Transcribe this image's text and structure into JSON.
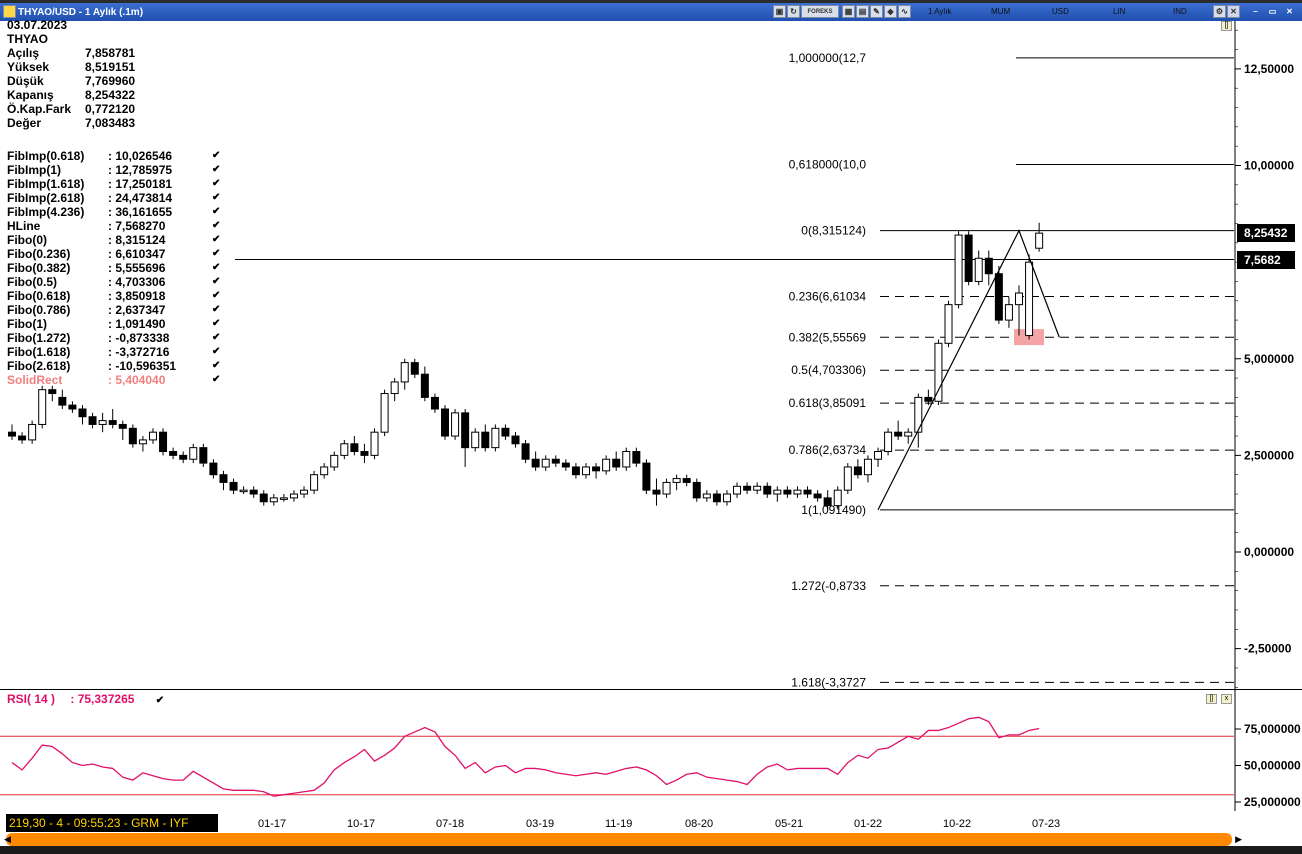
{
  "window": {
    "title": "THYAO/USD - 1 Aylık  (.1m)",
    "toolbar_tabs": [
      "1 Aylık",
      "MUM",
      "USD",
      "LIN",
      "IND"
    ],
    "forex_label": "FOREKS"
  },
  "info": {
    "date": "03.07.2023",
    "symbol": "THYAO",
    "rows": [
      {
        "label": "Açılış",
        "value": "7,858781"
      },
      {
        "label": "Yüksek",
        "value": "8,519151"
      },
      {
        "label": "Düşük",
        "value": "7,769960"
      },
      {
        "label": "Kapanış",
        "value": "8,254322"
      },
      {
        "label": "Ö.Kap.Fark",
        "value": "0,772120"
      },
      {
        "label": "Değer",
        "value": "7,083483"
      }
    ]
  },
  "legend": [
    {
      "label": "FibImp(0.618)",
      "value": ": 10,026546"
    },
    {
      "label": "FibImp(1)",
      "value": ": 12,785975"
    },
    {
      "label": "FibImp(1.618)",
      "value": ": 17,250181"
    },
    {
      "label": "FibImp(2.618)",
      "value": ": 24,473814"
    },
    {
      "label": "FibImp(4.236)",
      "value": ": 36,161655"
    },
    {
      "label": "HLine",
      "value": ": 7,568270"
    },
    {
      "label": "Fibo(0)",
      "value": ": 8,315124"
    },
    {
      "label": "Fibo(0.236)",
      "value": ": 6,610347"
    },
    {
      "label": "Fibo(0.382)",
      "value": ": 5,555696"
    },
    {
      "label": "Fibo(0.5)",
      "value": ": 4,703306"
    },
    {
      "label": "Fibo(0.618)",
      "value": ": 3,850918"
    },
    {
      "label": "Fibo(0.786)",
      "value": ": 2,637347"
    },
    {
      "label": "Fibo(1)",
      "value": ": 1,091490"
    },
    {
      "label": "Fibo(1.272)",
      "value": ": -0,873338"
    },
    {
      "label": "Fibo(1.618)",
      "value": ": -3,372716"
    },
    {
      "label": "Fibo(2.618)",
      "value": ": -10,596351"
    },
    {
      "label": "SolidRect",
      "value": ": 5,404040",
      "color": "#f08080"
    }
  ],
  "fib_labels": [
    {
      "text": "1,000000(12,7",
      "value": 12.785975,
      "dashed": false
    },
    {
      "text": "0,618000(10,0",
      "value": 10.026546,
      "dashed": false
    },
    {
      "text": "0(8,315124)",
      "value": 8.315124,
      "dashed": false
    },
    {
      "text": "0.236(6,61034",
      "value": 6.610347,
      "dashed": true
    },
    {
      "text": "0.382(5,55569",
      "value": 5.555696,
      "dashed": true
    },
    {
      "text": "0.5(4,703306)",
      "value": 4.703306,
      "dashed": true
    },
    {
      "text": "0.618(3,85091",
      "value": 3.850918,
      "dashed": true
    },
    {
      "text": "0.786(2,63734",
      "value": 2.637347,
      "dashed": true
    },
    {
      "text": "1(1,091490)",
      "value": 1.09149,
      "dashed": false
    },
    {
      "text": "1.272(-0,8733",
      "value": -0.873338,
      "dashed": true
    },
    {
      "text": "1.618(-3,3727",
      "value": -3.372716,
      "dashed": true
    }
  ],
  "price_axis": [
    "12,50000",
    "10,00000",
    "5,000000",
    "2,500000",
    "0,000000",
    "-2,50000"
  ],
  "price_axis_values": [
    12.5,
    10,
    5,
    2.5,
    0,
    -2.5
  ],
  "price_tags": {
    "close": "8,25432",
    "hline": "7,5682"
  },
  "hline_value": 7.56827,
  "solid_rect_value": 5.40404,
  "rsi": {
    "label": "RSI( 14 )",
    "value": ": 75,337265",
    "axis": [
      "75,000000",
      "50,000000",
      "25,000000"
    ],
    "axis_values": [
      75,
      50,
      25
    ],
    "upper": 70,
    "lower": 30
  },
  "statusbar": "219,30 - 4 - 09:55:23 - GRM - IYF",
  "x_axis": [
    "01-17",
    "10-17",
    "07-18",
    "03-19",
    "11-19",
    "08-20",
    "05-21",
    "01-22",
    "10-22",
    "07-23"
  ],
  "chart_data": {
    "type": "candlestick",
    "series_name": "THYAO/USD",
    "candles": [
      [
        3.1,
        3.3,
        2.9,
        3.0
      ],
      [
        3.0,
        3.1,
        2.8,
        2.9
      ],
      [
        2.9,
        3.4,
        2.8,
        3.3
      ],
      [
        3.3,
        4.3,
        3.2,
        4.2
      ],
      [
        4.2,
        4.3,
        3.9,
        4.1
      ],
      [
        4.0,
        4.2,
        3.7,
        3.8
      ],
      [
        3.8,
        3.9,
        3.6,
        3.7
      ],
      [
        3.7,
        3.8,
        3.3,
        3.5
      ],
      [
        3.5,
        3.6,
        3.2,
        3.3
      ],
      [
        3.3,
        3.6,
        3.1,
        3.4
      ],
      [
        3.4,
        3.7,
        3.2,
        3.3
      ],
      [
        3.3,
        3.4,
        2.9,
        3.2
      ],
      [
        3.2,
        3.3,
        2.7,
        2.8
      ],
      [
        2.8,
        3.0,
        2.6,
        2.9
      ],
      [
        2.9,
        3.2,
        2.8,
        3.1
      ],
      [
        3.1,
        3.2,
        2.5,
        2.6
      ],
      [
        2.6,
        2.7,
        2.4,
        2.5
      ],
      [
        2.5,
        2.6,
        2.3,
        2.4
      ],
      [
        2.4,
        2.8,
        2.3,
        2.7
      ],
      [
        2.7,
        2.8,
        2.2,
        2.3
      ],
      [
        2.3,
        2.4,
        1.9,
        2.0
      ],
      [
        2.0,
        2.1,
        1.6,
        1.8
      ],
      [
        1.8,
        1.9,
        1.5,
        1.6
      ],
      [
        1.6,
        1.7,
        1.5,
        1.6
      ],
      [
        1.6,
        1.7,
        1.4,
        1.5
      ],
      [
        1.5,
        1.6,
        1.2,
        1.3
      ],
      [
        1.3,
        1.5,
        1.2,
        1.4
      ],
      [
        1.4,
        1.5,
        1.3,
        1.4
      ],
      [
        1.4,
        1.6,
        1.3,
        1.5
      ],
      [
        1.5,
        1.7,
        1.4,
        1.6
      ],
      [
        1.6,
        2.1,
        1.5,
        2.0
      ],
      [
        2.0,
        2.3,
        1.9,
        2.2
      ],
      [
        2.2,
        2.6,
        2.1,
        2.5
      ],
      [
        2.5,
        2.9,
        2.4,
        2.8
      ],
      [
        2.8,
        3.0,
        2.5,
        2.6
      ],
      [
        2.6,
        2.8,
        2.3,
        2.5
      ],
      [
        2.5,
        3.2,
        2.4,
        3.1
      ],
      [
        3.1,
        4.2,
        3.0,
        4.1
      ],
      [
        4.1,
        4.5,
        3.9,
        4.4
      ],
      [
        4.4,
        5.0,
        4.2,
        4.9
      ],
      [
        4.9,
        5.0,
        4.5,
        4.6
      ],
      [
        4.6,
        4.8,
        3.9,
        4.0
      ],
      [
        4.0,
        4.1,
        3.6,
        3.7
      ],
      [
        3.7,
        3.8,
        2.9,
        3.0
      ],
      [
        3.0,
        3.7,
        2.9,
        3.6
      ],
      [
        3.6,
        3.7,
        2.2,
        2.7
      ],
      [
        2.7,
        3.2,
        2.6,
        3.1
      ],
      [
        3.1,
        3.3,
        2.6,
        2.7
      ],
      [
        2.7,
        3.3,
        2.6,
        3.2
      ],
      [
        3.2,
        3.3,
        2.9,
        3.0
      ],
      [
        3.0,
        3.1,
        2.7,
        2.8
      ],
      [
        2.8,
        2.9,
        2.3,
        2.4
      ],
      [
        2.4,
        2.6,
        2.1,
        2.2
      ],
      [
        2.2,
        2.5,
        2.1,
        2.4
      ],
      [
        2.4,
        2.5,
        2.2,
        2.3
      ],
      [
        2.3,
        2.4,
        2.1,
        2.2
      ],
      [
        2.2,
        2.3,
        1.9,
        2.0
      ],
      [
        2.0,
        2.3,
        1.9,
        2.2
      ],
      [
        2.2,
        2.3,
        1.9,
        2.1
      ],
      [
        2.1,
        2.5,
        2.0,
        2.4
      ],
      [
        2.4,
        2.6,
        2.1,
        2.2
      ],
      [
        2.2,
        2.7,
        2.1,
        2.6
      ],
      [
        2.6,
        2.7,
        2.2,
        2.3
      ],
      [
        2.3,
        2.4,
        1.5,
        1.6
      ],
      [
        1.6,
        1.9,
        1.2,
        1.5
      ],
      [
        1.5,
        1.9,
        1.4,
        1.8
      ],
      [
        1.8,
        2.0,
        1.6,
        1.9
      ],
      [
        1.9,
        2.0,
        1.7,
        1.8
      ],
      [
        1.8,
        1.9,
        1.3,
        1.4
      ],
      [
        1.4,
        1.6,
        1.3,
        1.5
      ],
      [
        1.5,
        1.6,
        1.2,
        1.3
      ],
      [
        1.3,
        1.6,
        1.2,
        1.5
      ],
      [
        1.5,
        1.8,
        1.4,
        1.7
      ],
      [
        1.7,
        1.8,
        1.5,
        1.6
      ],
      [
        1.6,
        1.8,
        1.5,
        1.7
      ],
      [
        1.7,
        1.8,
        1.4,
        1.5
      ],
      [
        1.5,
        1.7,
        1.3,
        1.6
      ],
      [
        1.6,
        1.7,
        1.4,
        1.5
      ],
      [
        1.5,
        1.7,
        1.4,
        1.6
      ],
      [
        1.6,
        1.7,
        1.4,
        1.5
      ],
      [
        1.5,
        1.6,
        1.3,
        1.4
      ],
      [
        1.4,
        1.6,
        1.1,
        1.2
      ],
      [
        1.2,
        1.7,
        1.1,
        1.6
      ],
      [
        1.6,
        2.3,
        1.5,
        2.2
      ],
      [
        2.2,
        2.4,
        1.9,
        2.0
      ],
      [
        2.0,
        2.5,
        1.8,
        2.4
      ],
      [
        2.4,
        2.7,
        2.2,
        2.6
      ],
      [
        2.6,
        3.2,
        2.5,
        3.1
      ],
      [
        3.1,
        3.4,
        2.9,
        3.0
      ],
      [
        3.0,
        3.2,
        2.8,
        3.1
      ],
      [
        3.1,
        4.1,
        2.7,
        4.0
      ],
      [
        4.0,
        4.2,
        3.8,
        3.9
      ],
      [
        3.9,
        5.5,
        3.8,
        5.4
      ],
      [
        5.4,
        6.5,
        5.3,
        6.4
      ],
      [
        6.4,
        8.3,
        6.3,
        8.2
      ],
      [
        8.2,
        8.3,
        6.9,
        7.0
      ],
      [
        7.0,
        7.8,
        6.9,
        7.6
      ],
      [
        7.6,
        7.8,
        6.9,
        7.2
      ],
      [
        7.2,
        7.4,
        5.9,
        6.0
      ],
      [
        6.0,
        6.6,
        5.8,
        6.4
      ],
      [
        6.4,
        6.9,
        5.6,
        6.7
      ],
      [
        5.6,
        7.7,
        5.5,
        7.5
      ],
      [
        7.86,
        8.52,
        7.77,
        8.25
      ]
    ],
    "rsi": [
      52,
      47,
      55,
      64,
      63,
      58,
      52,
      50,
      51,
      49,
      48,
      42,
      40,
      45,
      43,
      41,
      40,
      40,
      46,
      42,
      38,
      34,
      33,
      33,
      33,
      32,
      29,
      30,
      31,
      32,
      33,
      38,
      47,
      52,
      56,
      61,
      53,
      57,
      62,
      70,
      73,
      76,
      73,
      63,
      57,
      48,
      52,
      45,
      49,
      50,
      45,
      48,
      48,
      47,
      45,
      44,
      43,
      44,
      45,
      44,
      46,
      48,
      49,
      47,
      43,
      37,
      40,
      44,
      45,
      42,
      41,
      40,
      39,
      37,
      44,
      49,
      51,
      47,
      48,
      48,
      48,
      48,
      44,
      52,
      57,
      55,
      61,
      62,
      66,
      70,
      68,
      74,
      74,
      76,
      79,
      82,
      83,
      80,
      69,
      71,
      71,
      74,
      75.34
    ]
  }
}
